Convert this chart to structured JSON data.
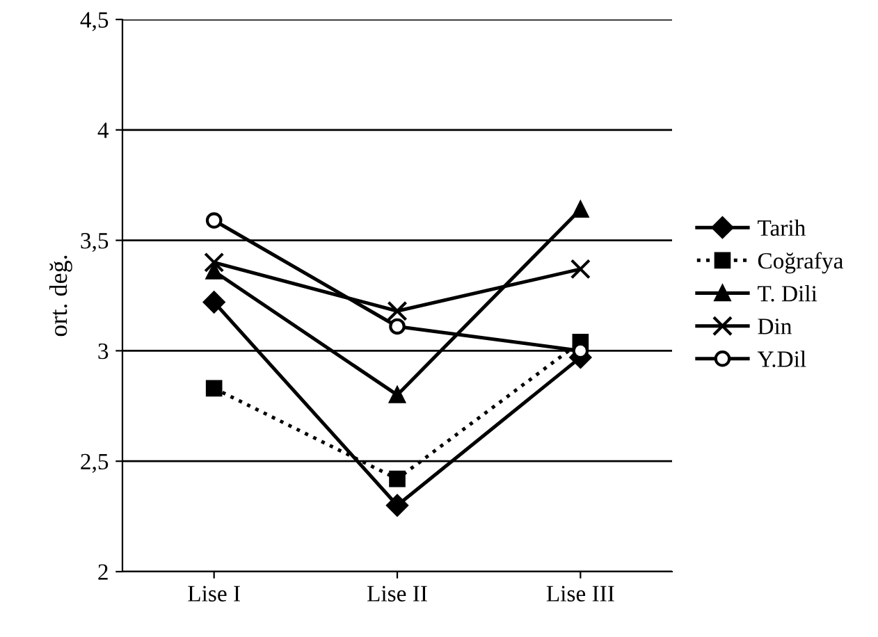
{
  "chart_data": {
    "type": "line",
    "ylabel": "ort. değ.",
    "categories": [
      "Lise I",
      "Lise II",
      "Lise III"
    ],
    "series": [
      {
        "name": "Tarih",
        "color": "#000000",
        "marker": "diamond",
        "line_style": "solid",
        "values": [
          3.22,
          2.3,
          2.97
        ]
      },
      {
        "name": "Coğrafya",
        "color": "#000000",
        "marker": "square",
        "line_style": "dotted",
        "values": [
          2.83,
          2.42,
          3.04
        ]
      },
      {
        "name": "T. Dili",
        "color": "#000000",
        "marker": "triangle",
        "line_style": "solid",
        "values": [
          3.36,
          2.8,
          3.64
        ]
      },
      {
        "name": "Din",
        "color": "#000000",
        "marker": "cross",
        "line_style": "solid",
        "values": [
          3.4,
          3.18,
          3.37
        ]
      },
      {
        "name": "Y.Dil",
        "color": "#000000",
        "marker": "circle",
        "line_style": "solid",
        "values": [
          3.59,
          3.11,
          3.0
        ]
      }
    ],
    "ylim": [
      2,
      4.5
    ],
    "yticks": [
      {
        "value": 2,
        "label": "2"
      },
      {
        "value": 2.5,
        "label": "2,5"
      },
      {
        "value": 3,
        "label": "3"
      },
      {
        "value": 3.5,
        "label": "3,5"
      },
      {
        "value": 4,
        "label": "4"
      },
      {
        "value": 4.5,
        "label": "4,5"
      }
    ],
    "grid": "y",
    "legend": "right"
  }
}
